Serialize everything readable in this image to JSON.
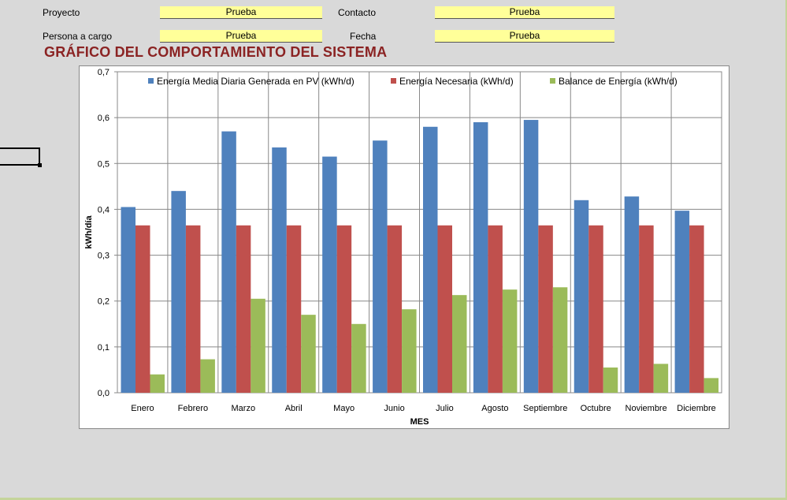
{
  "form": {
    "proyecto_label": "Proyecto",
    "proyecto_value": "Prueba",
    "contacto_label": "Contacto",
    "contacto_value": "Prueba",
    "persona_label": "Persona a cargo",
    "persona_value": "Prueba",
    "fecha_label": "Fecha",
    "fecha_value": "Prueba"
  },
  "sheet_title": "GRÁFICO DEL COMPORTAMIENTO DEL SISTEMA",
  "colors": {
    "series1": "#4f81bd",
    "series2": "#c0504d",
    "series3": "#9bbb59",
    "title": "#8b2323"
  },
  "chart_data": {
    "type": "bar",
    "title": "",
    "xlabel": "MES",
    "ylabel": "kWh/día",
    "ylim": [
      0,
      0.7
    ],
    "yticks": [
      "0,0",
      "0,1",
      "0,2",
      "0,3",
      "0,4",
      "0,5",
      "0,6",
      "0,7"
    ],
    "grid": true,
    "legend": "top",
    "categories": [
      "Enero",
      "Febrero",
      "Marzo",
      "Abril",
      "Mayo",
      "Junio",
      "Julio",
      "Agosto",
      "Septiembre",
      "Octubre",
      "Noviembre",
      "Diciembre"
    ],
    "series": [
      {
        "name": "Energía Media Diaria Generada en PV (kWh/d)",
        "values": [
          0.405,
          0.44,
          0.57,
          0.535,
          0.515,
          0.55,
          0.58,
          0.59,
          0.595,
          0.42,
          0.428,
          0.397
        ]
      },
      {
        "name": "Energía Necesaria (kWh/d)",
        "values": [
          0.365,
          0.365,
          0.365,
          0.365,
          0.365,
          0.365,
          0.365,
          0.365,
          0.365,
          0.365,
          0.365,
          0.365
        ]
      },
      {
        "name": "Balance de Energía (kWh/d)",
        "values": [
          0.04,
          0.073,
          0.205,
          0.17,
          0.15,
          0.182,
          0.213,
          0.225,
          0.23,
          0.055,
          0.063,
          0.032
        ]
      }
    ]
  }
}
